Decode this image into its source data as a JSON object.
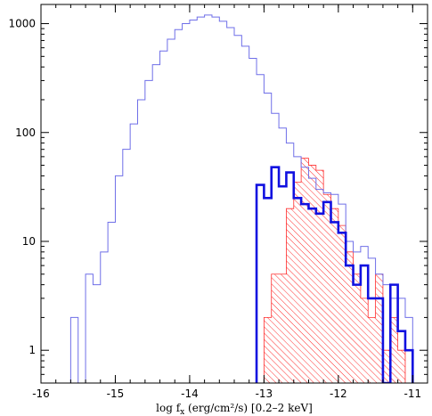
{
  "chart_data": {
    "type": "histogram",
    "xlabel": "log f_x (erg/cm²/s) [0.2–2 keV]",
    "xlabel_parts": {
      "pre": "log f",
      "sub": "x",
      "post": " (erg/cm²/s) [0.2–2 keV]"
    },
    "ylabel": "",
    "xlim": [
      -16,
      -10.8
    ],
    "ylim": [
      0.5,
      1500
    ],
    "yscale": "log",
    "x_ticks": [
      -16,
      -15,
      -14,
      -13,
      -12,
      -11
    ],
    "x_tick_labels": [
      "-16",
      "-15",
      "-14",
      "-13",
      "-12",
      "-11"
    ],
    "y_ticks": [
      1,
      10,
      100,
      1000
    ],
    "y_tick_labels": [
      "1",
      "10",
      "100",
      "1000"
    ],
    "grid": false,
    "bin_width": 0.1,
    "series": [
      {
        "color": "#6f6fe8",
        "style": "step-thin",
        "bins": [
          [
            -15.6,
            2
          ],
          [
            -15.5,
            0.5
          ],
          [
            -15.4,
            5
          ],
          [
            -15.3,
            4
          ],
          [
            -15.2,
            8
          ],
          [
            -15.1,
            15
          ],
          [
            -15.0,
            40
          ],
          [
            -14.9,
            70
          ],
          [
            -14.8,
            120
          ],
          [
            -14.7,
            200
          ],
          [
            -14.6,
            300
          ],
          [
            -14.5,
            420
          ],
          [
            -14.4,
            560
          ],
          [
            -14.3,
            720
          ],
          [
            -14.2,
            880
          ],
          [
            -14.1,
            1000
          ],
          [
            -14.0,
            1080
          ],
          [
            -13.9,
            1150
          ],
          [
            -13.8,
            1200
          ],
          [
            -13.7,
            1150
          ],
          [
            -13.6,
            1050
          ],
          [
            -13.5,
            920
          ],
          [
            -13.4,
            780
          ],
          [
            -13.3,
            620
          ],
          [
            -13.2,
            480
          ],
          [
            -13.1,
            340
          ],
          [
            -13.0,
            230
          ],
          [
            -12.9,
            150
          ],
          [
            -12.8,
            110
          ],
          [
            -12.7,
            80
          ],
          [
            -12.6,
            60
          ],
          [
            -12.5,
            48
          ],
          [
            -12.4,
            38
          ],
          [
            -12.3,
            30
          ],
          [
            -12.2,
            28
          ],
          [
            -12.1,
            27
          ],
          [
            -12.0,
            22
          ],
          [
            -11.9,
            10
          ],
          [
            -11.8,
            8
          ],
          [
            -11.7,
            9
          ],
          [
            -11.6,
            7
          ],
          [
            -11.5,
            5
          ],
          [
            -11.4,
            4
          ],
          [
            -11.3,
            3
          ],
          [
            -11.2,
            3
          ],
          [
            -11.1,
            2
          ]
        ]
      },
      {
        "color": "#ff2d2d",
        "style": "hatched",
        "bins": [
          [
            -13.1,
            0.5
          ],
          [
            -13.0,
            2
          ],
          [
            -12.9,
            5
          ],
          [
            -12.8,
            5
          ],
          [
            -12.7,
            20
          ],
          [
            -12.6,
            35
          ],
          [
            -12.5,
            58
          ],
          [
            -12.4,
            50
          ],
          [
            -12.3,
            45
          ],
          [
            -12.2,
            27
          ],
          [
            -12.1,
            20
          ],
          [
            -12.0,
            14
          ],
          [
            -11.9,
            8
          ],
          [
            -11.8,
            5
          ],
          [
            -11.7,
            3
          ],
          [
            -11.6,
            2
          ],
          [
            -11.5,
            5
          ],
          [
            -11.4,
            1
          ],
          [
            -11.3,
            2
          ],
          [
            -11.2,
            1
          ]
        ]
      },
      {
        "color": "#1010e0",
        "style": "step-thick",
        "bins": [
          [
            -13.1,
            33
          ],
          [
            -13.0,
            25
          ],
          [
            -12.9,
            48
          ],
          [
            -12.8,
            32
          ],
          [
            -12.7,
            43
          ],
          [
            -12.6,
            25
          ],
          [
            -12.5,
            22
          ],
          [
            -12.4,
            20
          ],
          [
            -12.3,
            18
          ],
          [
            -12.2,
            23
          ],
          [
            -12.1,
            15
          ],
          [
            -12.0,
            12
          ],
          [
            -11.9,
            6
          ],
          [
            -11.8,
            4
          ],
          [
            -11.7,
            6
          ],
          [
            -11.6,
            3
          ],
          [
            -11.5,
            3
          ],
          [
            -11.4,
            0.5
          ],
          [
            -11.3,
            4
          ],
          [
            -11.2,
            1.5
          ],
          [
            -11.1,
            1
          ]
        ]
      }
    ]
  }
}
